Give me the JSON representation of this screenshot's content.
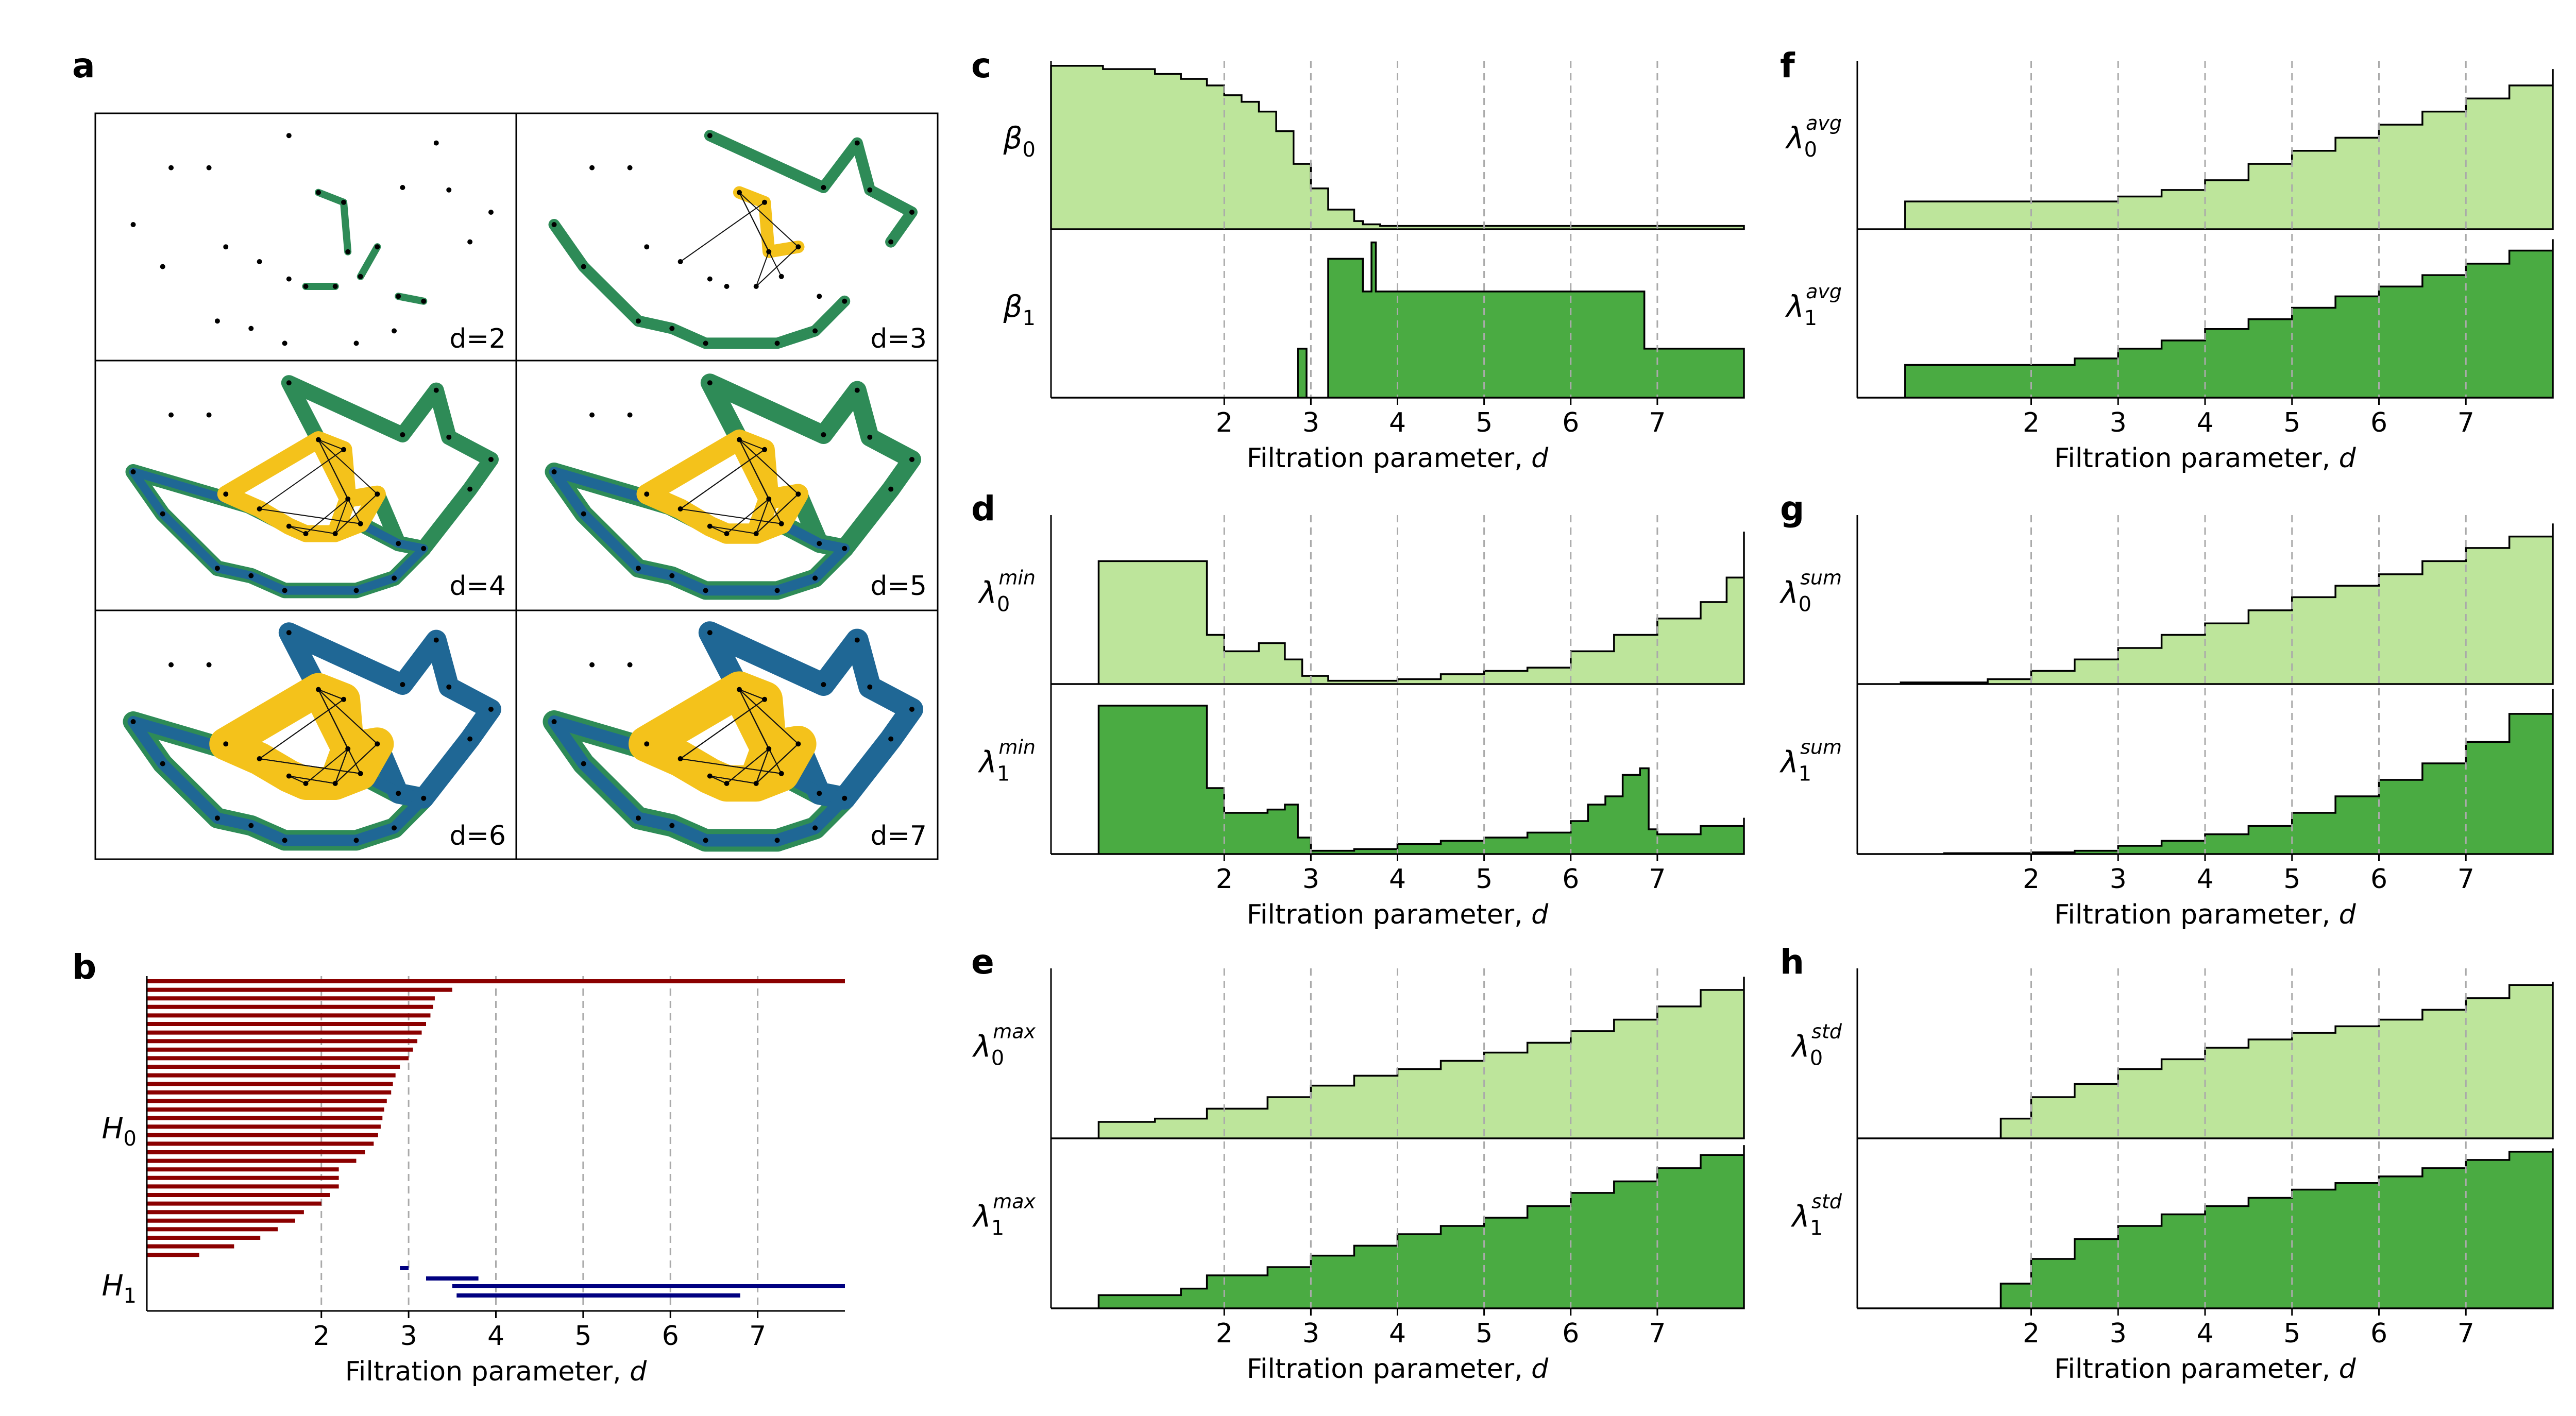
{
  "figure": {
    "panel_letters": [
      "a",
      "b",
      "c",
      "d",
      "e",
      "f",
      "g",
      "h"
    ],
    "xlabel_main": "Filtration parameter, ",
    "xlabel_var": "d",
    "x_ticks": [
      2,
      3,
      4,
      5,
      6,
      7
    ],
    "x_range": [
      0,
      8
    ]
  },
  "colors": {
    "light_green": "#bde59b",
    "dark_green": "#4aab42",
    "h0_bar": "#8b0000",
    "h1_bar": "#000080",
    "complex_green": "#2e8b57",
    "complex_blue": "#1f6795",
    "complex_yellow": "#f4c21b",
    "grid": "#aaaaaa"
  },
  "panel_a": {
    "labels": [
      "d=2",
      "d=3",
      "d=4",
      "d=5",
      "d=6",
      "d=7"
    ]
  },
  "chart_data": [
    {
      "panel": "b",
      "type": "bar",
      "subtype": "persistence-barcode",
      "xlabel": "Filtration parameter, d",
      "xlim": [
        0,
        8
      ],
      "xticks": [
        2,
        3,
        4,
        5,
        6,
        7
      ],
      "row_labels": [
        {
          "base": "H",
          "sub": "0"
        },
        {
          "base": "H",
          "sub": "1"
        }
      ],
      "series": [
        {
          "name": "H0",
          "intervals": [
            [
              0,
              8
            ],
            [
              0,
              3.5
            ],
            [
              0,
              3.3
            ],
            [
              0,
              3.28
            ],
            [
              0,
              3.25
            ],
            [
              0,
              3.2
            ],
            [
              0,
              3.15
            ],
            [
              0,
              3.1
            ],
            [
              0,
              3.05
            ],
            [
              0,
              3.0
            ],
            [
              0,
              2.9
            ],
            [
              0,
              2.85
            ],
            [
              0,
              2.82
            ],
            [
              0,
              2.8
            ],
            [
              0,
              2.75
            ],
            [
              0,
              2.72
            ],
            [
              0,
              2.7
            ],
            [
              0,
              2.68
            ],
            [
              0,
              2.65
            ],
            [
              0,
              2.6
            ],
            [
              0,
              2.5
            ],
            [
              0,
              2.4
            ],
            [
              0,
              2.2
            ],
            [
              0,
              2.2
            ],
            [
              0,
              2.2
            ],
            [
              0,
              2.1
            ],
            [
              0,
              2.0
            ],
            [
              0,
              1.8
            ],
            [
              0,
              1.7
            ],
            [
              0,
              1.5
            ],
            [
              0,
              1.3
            ],
            [
              0,
              1.0
            ],
            [
              0,
              0.6
            ]
          ]
        },
        {
          "name": "H1",
          "intervals": [
            [
              2.9,
              3.0
            ],
            [
              3.2,
              3.8
            ],
            [
              3.5,
              8
            ],
            [
              3.55,
              6.8
            ]
          ]
        }
      ]
    },
    {
      "panel": "c",
      "type": "area",
      "xlabel": "Filtration parameter, d",
      "xlim": [
        0,
        8
      ],
      "xticks": [
        2,
        3,
        4,
        5,
        6,
        7
      ],
      "series": [
        {
          "label": "β",
          "sub": "0",
          "sup": "",
          "x": [
            0,
            0.6,
            1.2,
            1.5,
            1.8,
            2.0,
            2.2,
            2.4,
            2.6,
            2.8,
            3.0,
            3.2,
            3.5,
            3.6,
            3.8,
            8
          ],
          "y": [
            1.0,
            0.98,
            0.95,
            0.92,
            0.88,
            0.82,
            0.78,
            0.72,
            0.6,
            0.4,
            0.25,
            0.12,
            0.05,
            0.03,
            0.02,
            0.02
          ]
        },
        {
          "label": "β",
          "sub": "1",
          "sup": "",
          "x": [
            0,
            2.85,
            2.95,
            3.2,
            3.5,
            3.6,
            3.7,
            3.75,
            6.8,
            6.85,
            8
          ],
          "y": [
            0,
            0.3,
            0,
            0.85,
            0.85,
            0.65,
            0.95,
            0.65,
            0.65,
            0.3,
            0.3
          ]
        }
      ]
    },
    {
      "panel": "d",
      "type": "area",
      "xlabel": "Filtration parameter, d",
      "xlim": [
        0,
        8
      ],
      "xticks": [
        2,
        3,
        4,
        5,
        6,
        7
      ],
      "series": [
        {
          "label": "λ",
          "sub": "0",
          "sup": "min",
          "x": [
            0,
            0.55,
            1.65,
            1.8,
            2.0,
            2.4,
            2.7,
            2.9,
            3.2,
            4.0,
            4.5,
            5.0,
            5.5,
            6.0,
            6.5,
            7.0,
            7.5,
            7.8,
            8
          ],
          "y": [
            0,
            0.75,
            0.75,
            0.3,
            0.2,
            0.25,
            0.15,
            0.05,
            0.02,
            0.03,
            0.06,
            0.08,
            0.1,
            0.2,
            0.3,
            0.4,
            0.5,
            0.65,
            0.93
          ]
        },
        {
          "label": "λ",
          "sub": "1",
          "sup": "min",
          "x": [
            0,
            0.55,
            1.6,
            1.8,
            2.0,
            2.5,
            2.7,
            2.85,
            3.0,
            3.5,
            4.0,
            4.5,
            5.0,
            5.5,
            6.0,
            6.2,
            6.4,
            6.6,
            6.8,
            6.9,
            7.0,
            7.5,
            8
          ],
          "y": [
            0,
            0.9,
            0.9,
            0.4,
            0.25,
            0.27,
            0.3,
            0.1,
            0.02,
            0.03,
            0.06,
            0.08,
            0.1,
            0.13,
            0.2,
            0.3,
            0.35,
            0.48,
            0.52,
            0.15,
            0.12,
            0.17,
            0.22
          ]
        }
      ]
    },
    {
      "panel": "e",
      "type": "area",
      "xlabel": "Filtration parameter, d",
      "xlim": [
        0,
        8
      ],
      "xticks": [
        2,
        3,
        4,
        5,
        6,
        7
      ],
      "series": [
        {
          "label": "λ",
          "sub": "0",
          "sup": "max",
          "x": [
            0,
            0.55,
            1.2,
            1.8,
            2.5,
            3.0,
            3.5,
            4.0,
            4.5,
            5.0,
            5.5,
            6.0,
            6.5,
            7.0,
            7.5,
            8
          ],
          "y": [
            0,
            0.1,
            0.12,
            0.18,
            0.25,
            0.32,
            0.38,
            0.42,
            0.47,
            0.52,
            0.58,
            0.65,
            0.72,
            0.8,
            0.9,
            0.98
          ]
        },
        {
          "label": "λ",
          "sub": "1",
          "sup": "max",
          "x": [
            0,
            0.55,
            1.5,
            1.8,
            2.5,
            3.0,
            3.5,
            4.0,
            4.5,
            5.0,
            5.5,
            6.0,
            6.5,
            7.0,
            7.5,
            8
          ],
          "y": [
            0,
            0.08,
            0.12,
            0.2,
            0.25,
            0.32,
            0.38,
            0.45,
            0.5,
            0.55,
            0.62,
            0.7,
            0.77,
            0.85,
            0.93,
            0.99
          ]
        }
      ]
    },
    {
      "panel": "f",
      "type": "area",
      "xlabel": "Filtration parameter, d",
      "xlim": [
        0,
        8
      ],
      "xticks": [
        2,
        3,
        4,
        5,
        6,
        7
      ],
      "series": [
        {
          "label": "λ",
          "sub": "0",
          "sup": "avg",
          "x": [
            0,
            0.55,
            2.0,
            3.0,
            3.5,
            4.0,
            4.5,
            5.0,
            5.5,
            6.0,
            6.5,
            7.0,
            7.5,
            8
          ],
          "y": [
            0,
            0.17,
            0.17,
            0.2,
            0.24,
            0.3,
            0.4,
            0.48,
            0.56,
            0.64,
            0.72,
            0.8,
            0.88,
            0.98
          ]
        },
        {
          "label": "λ",
          "sub": "1",
          "sup": "avg",
          "x": [
            0,
            0.55,
            2.0,
            2.5,
            3.0,
            3.5,
            4.0,
            4.5,
            5.0,
            5.5,
            6.0,
            6.5,
            7.0,
            7.5,
            8
          ],
          "y": [
            0,
            0.2,
            0.2,
            0.24,
            0.3,
            0.35,
            0.42,
            0.48,
            0.55,
            0.62,
            0.68,
            0.75,
            0.82,
            0.9,
            0.97
          ]
        }
      ]
    },
    {
      "panel": "g",
      "type": "area",
      "xlabel": "Filtration parameter, d",
      "xlim": [
        0,
        8
      ],
      "xticks": [
        2,
        3,
        4,
        5,
        6,
        7
      ],
      "series": [
        {
          "label": "λ",
          "sub": "0",
          "sup": "sum",
          "x": [
            0,
            0.5,
            1.5,
            2.0,
            2.5,
            3.0,
            3.5,
            4.0,
            4.5,
            5.0,
            5.5,
            6.0,
            6.5,
            7.0,
            7.5,
            8
          ],
          "y": [
            0,
            0.01,
            0.03,
            0.08,
            0.15,
            0.22,
            0.3,
            0.37,
            0.45,
            0.53,
            0.6,
            0.67,
            0.75,
            0.83,
            0.9,
            0.98
          ]
        },
        {
          "label": "λ",
          "sub": "1",
          "sup": "sum",
          "x": [
            0,
            1.0,
            2.0,
            2.5,
            3.0,
            3.5,
            4.0,
            4.5,
            5.0,
            5.5,
            6.0,
            6.5,
            7.0,
            7.5,
            8
          ],
          "y": [
            0,
            0.005,
            0.01,
            0.02,
            0.05,
            0.08,
            0.12,
            0.17,
            0.25,
            0.35,
            0.45,
            0.55,
            0.68,
            0.85,
            1.0
          ]
        }
      ]
    },
    {
      "panel": "h",
      "type": "area",
      "xlabel": "Filtration parameter, d",
      "xlim": [
        0,
        8
      ],
      "xticks": [
        2,
        3,
        4,
        5,
        6,
        7
      ],
      "series": [
        {
          "label": "λ",
          "sub": "0",
          "sup": "std",
          "x": [
            0,
            1.65,
            2.0,
            2.5,
            3.0,
            3.5,
            4.0,
            4.5,
            5.0,
            5.5,
            6.0,
            6.5,
            7.0,
            7.5,
            8
          ],
          "y": [
            0,
            0.12,
            0.25,
            0.33,
            0.42,
            0.48,
            0.55,
            0.6,
            0.64,
            0.68,
            0.72,
            0.78,
            0.85,
            0.93,
            0.95
          ]
        },
        {
          "label": "λ",
          "sub": "1",
          "sup": "std",
          "x": [
            0,
            1.65,
            2.0,
            2.5,
            3.0,
            3.5,
            4.0,
            4.5,
            5.0,
            5.5,
            6.0,
            6.5,
            7.0,
            7.5,
            8
          ],
          "y": [
            0,
            0.15,
            0.3,
            0.42,
            0.5,
            0.57,
            0.62,
            0.67,
            0.72,
            0.76,
            0.8,
            0.85,
            0.9,
            0.95,
            0.97
          ]
        }
      ]
    }
  ]
}
